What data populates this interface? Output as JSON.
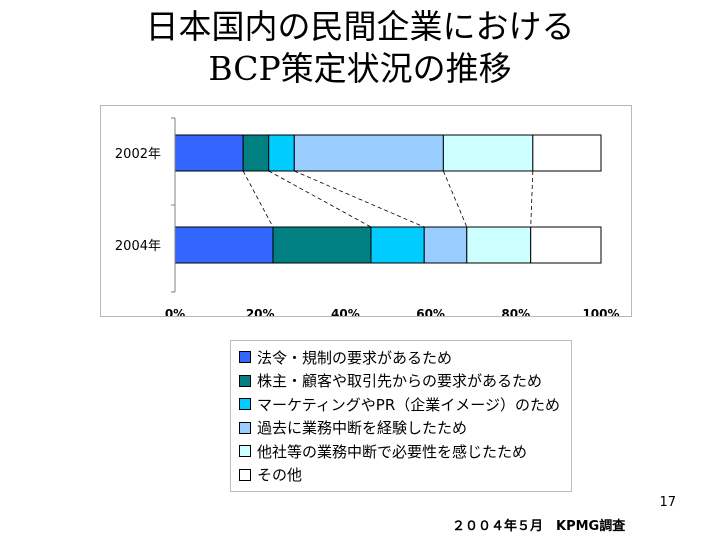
{
  "title": [
    "日本国内の民間企業における",
    "BCP策定状況の推移"
  ],
  "chart_data": {
    "type": "bar",
    "orientation": "horizontal",
    "stacked": true,
    "percent_stacked": true,
    "categories": [
      "2002年",
      "2004年"
    ],
    "x_ticks": [
      "0%",
      "20%",
      "40%",
      "60%",
      "80%",
      "100%"
    ],
    "xlim": [
      0,
      100
    ],
    "legend_position": "bottom",
    "series": [
      {
        "name": "法令・規制の要求があるため",
        "color": "#3366ff",
        "values": [
          16,
          23
        ]
      },
      {
        "name": "株主・顧客や取引先からの要求があるため",
        "color": "#008080",
        "values": [
          6,
          23
        ]
      },
      {
        "name": "マーケティングやPR（企業イメージ）のため",
        "color": "#00ccff",
        "values": [
          6,
          12.5
        ]
      },
      {
        "name": "過去に業務中断を経験したため",
        "color": "#99ccff",
        "values": [
          35,
          10
        ]
      },
      {
        "name": "他社等の業務中断で必要性を感じたため",
        "color": "#ccffff",
        "values": [
          21,
          15
        ]
      },
      {
        "name": "その他",
        "color": "#ffffff",
        "values": [
          16,
          16.5
        ]
      }
    ]
  },
  "page_number": "17",
  "source_note": "２００４年５月　KPMG調査"
}
